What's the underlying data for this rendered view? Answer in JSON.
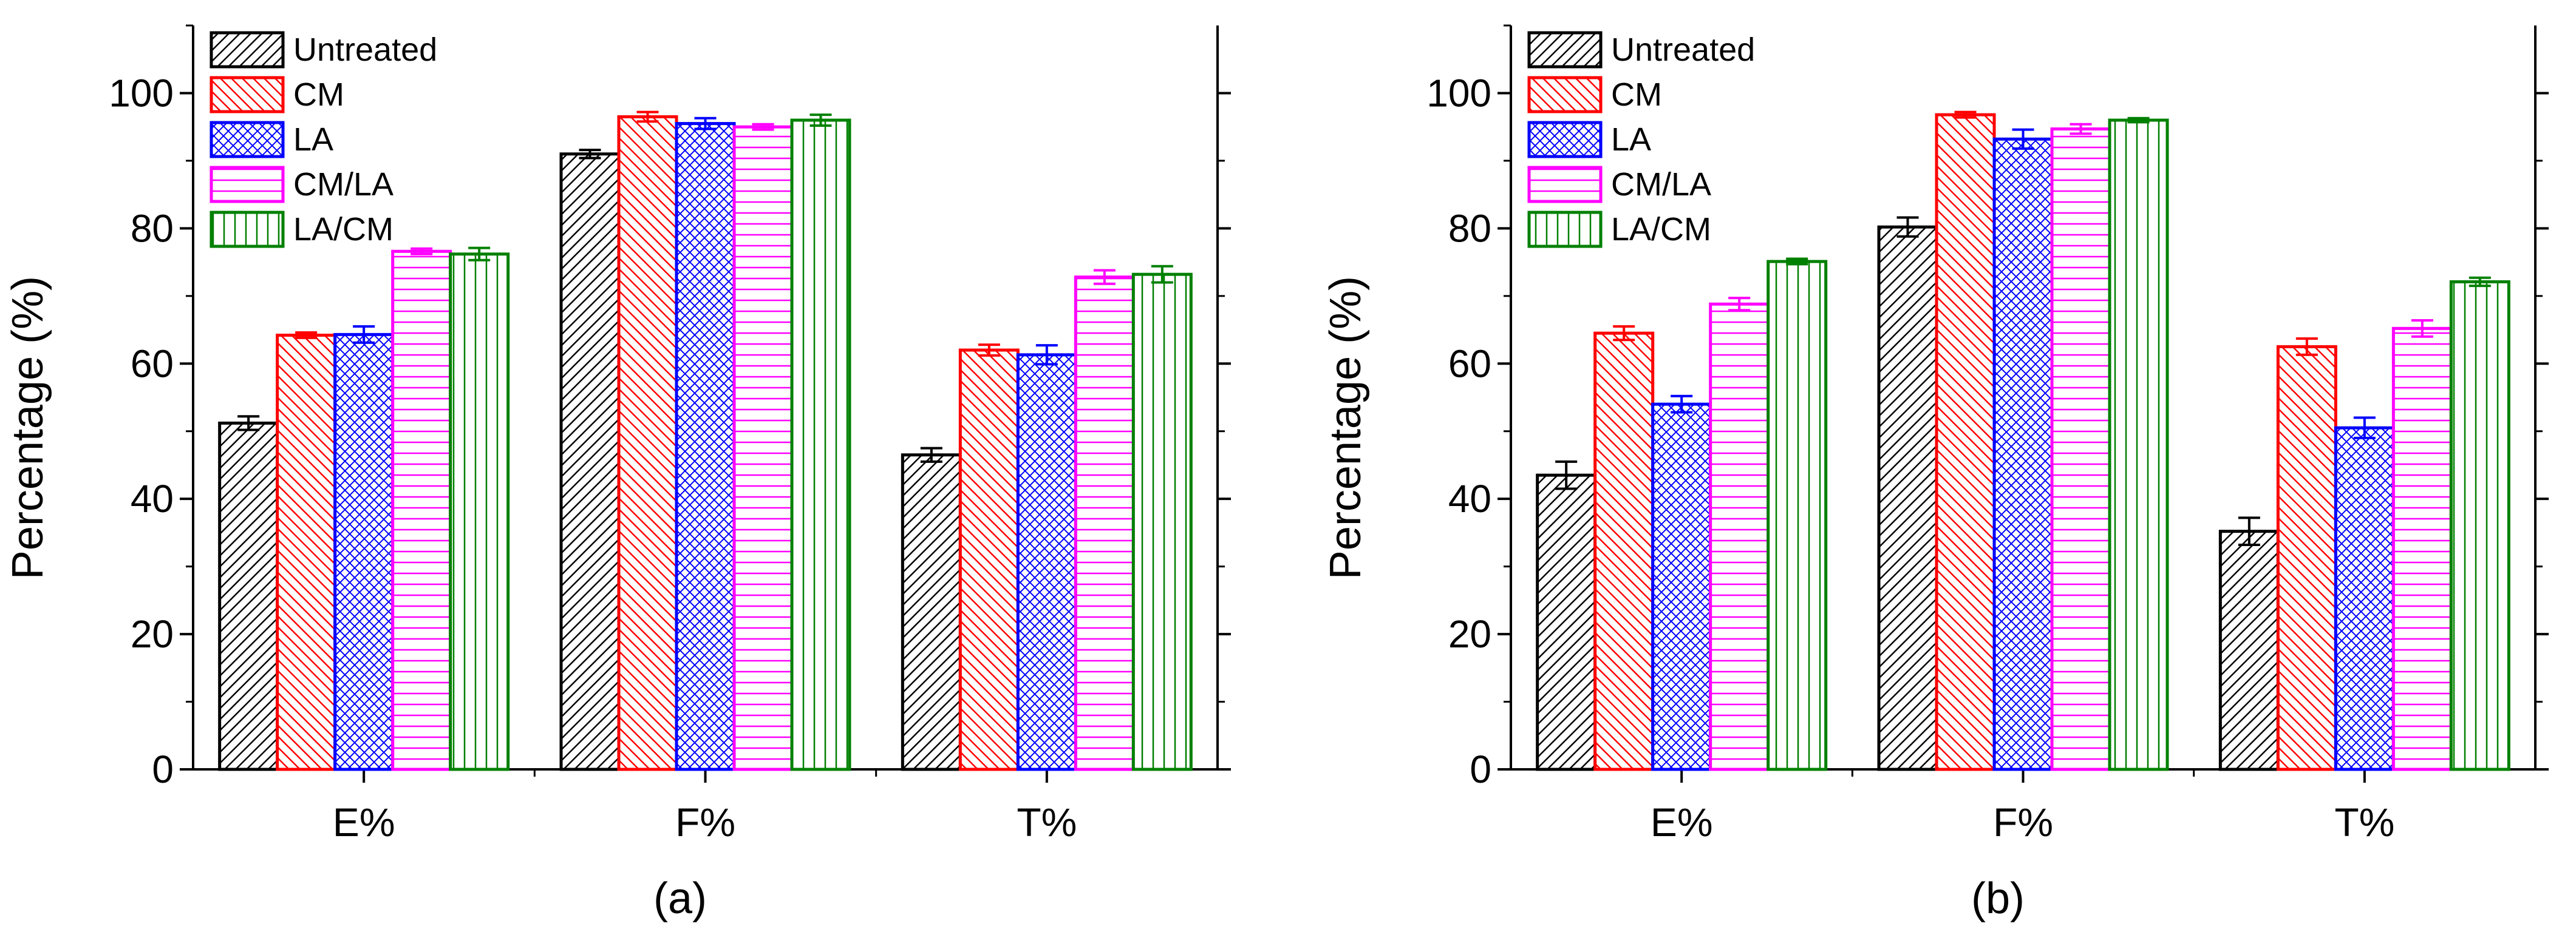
{
  "series_styles": [
    {
      "key": "Untreated",
      "color": "#000000",
      "pattern": "fwd"
    },
    {
      "key": "CM",
      "color": "#ff0000",
      "pattern": "back"
    },
    {
      "key": "LA",
      "color": "#0000ff",
      "pattern": "cross"
    },
    {
      "key": "CM/LA",
      "color": "#ff00ff",
      "pattern": "horiz"
    },
    {
      "key": "LA/CM",
      "color": "#008000",
      "pattern": "vert"
    }
  ],
  "chart_data": [
    {
      "panel": "(a)",
      "type": "bar",
      "categories": [
        "E%",
        "F%",
        "T%"
      ],
      "ylabel": "Percentage (%)",
      "xlabel": "",
      "ylim": [
        0,
        110
      ],
      "yticks": [
        0,
        20,
        40,
        60,
        80,
        100
      ],
      "legend_position": "top-left",
      "series": [
        {
          "name": "Untreated",
          "values": [
            51.2,
            91.0,
            46.5
          ],
          "errors": [
            1.0,
            0.6,
            1.0
          ]
        },
        {
          "name": "CM",
          "values": [
            64.2,
            96.5,
            62.0
          ],
          "errors": [
            0.4,
            0.7,
            0.8
          ]
        },
        {
          "name": "LA",
          "values": [
            64.3,
            95.5,
            61.3
          ],
          "errors": [
            1.2,
            0.8,
            1.4
          ]
        },
        {
          "name": "CM/LA",
          "values": [
            76.6,
            95.0,
            72.8
          ],
          "errors": [
            0.4,
            0.4,
            1.0
          ]
        },
        {
          "name": "LA/CM",
          "values": [
            76.2,
            96.0,
            73.2
          ],
          "errors": [
            0.9,
            0.8,
            1.2
          ]
        }
      ]
    },
    {
      "panel": "(b)",
      "type": "bar",
      "categories": [
        "E%",
        "F%",
        "T%"
      ],
      "ylabel": "Percentage (%)",
      "xlabel": "",
      "ylim": [
        0,
        110
      ],
      "yticks": [
        0,
        20,
        40,
        60,
        80,
        100
      ],
      "legend_position": "top-left",
      "series": [
        {
          "name": "Untreated",
          "values": [
            43.5,
            80.2,
            35.2
          ],
          "errors": [
            2.0,
            1.4,
            2.0
          ]
        },
        {
          "name": "CM",
          "values": [
            64.5,
            96.8,
            62.5
          ],
          "errors": [
            1.0,
            0.4,
            1.2
          ]
        },
        {
          "name": "LA",
          "values": [
            54.0,
            93.2,
            50.5
          ],
          "errors": [
            1.2,
            1.4,
            1.5
          ]
        },
        {
          "name": "CM/LA",
          "values": [
            68.8,
            94.7,
            65.2
          ],
          "errors": [
            0.9,
            0.7,
            1.2
          ]
        },
        {
          "name": "LA/CM",
          "values": [
            75.1,
            96.0,
            72.1
          ],
          "errors": [
            0.4,
            0.3,
            0.6
          ]
        }
      ]
    }
  ]
}
